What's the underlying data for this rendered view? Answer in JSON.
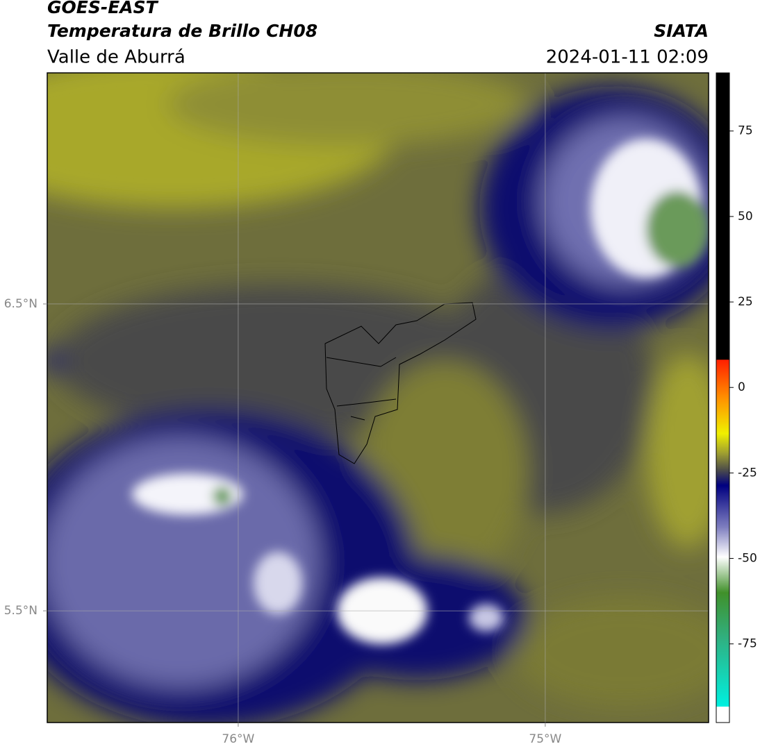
{
  "header": {
    "title": "GOES-EAST",
    "subtitle": "Temperatura de Brillo CH08",
    "region": "Valle de Aburrá",
    "source": "SIATA",
    "datetime": "2024-01-11 02:09"
  },
  "map": {
    "xlim": [
      -76.622,
      -74.468
    ],
    "ylim": [
      5.136,
      7.253
    ],
    "xticks": [
      {
        "value": -76,
        "label": "76°W"
      },
      {
        "value": -75,
        "label": "75°W"
      }
    ],
    "yticks": [
      {
        "value": 6.5,
        "label": "6.5°N"
      },
      {
        "value": 5.5,
        "label": "5.5°N"
      }
    ],
    "grid": true
  },
  "colorbar": {
    "lim": [
      -98,
      92
    ],
    "ticks": [
      75,
      50,
      25,
      0,
      -25,
      -50,
      -75
    ]
  }
}
